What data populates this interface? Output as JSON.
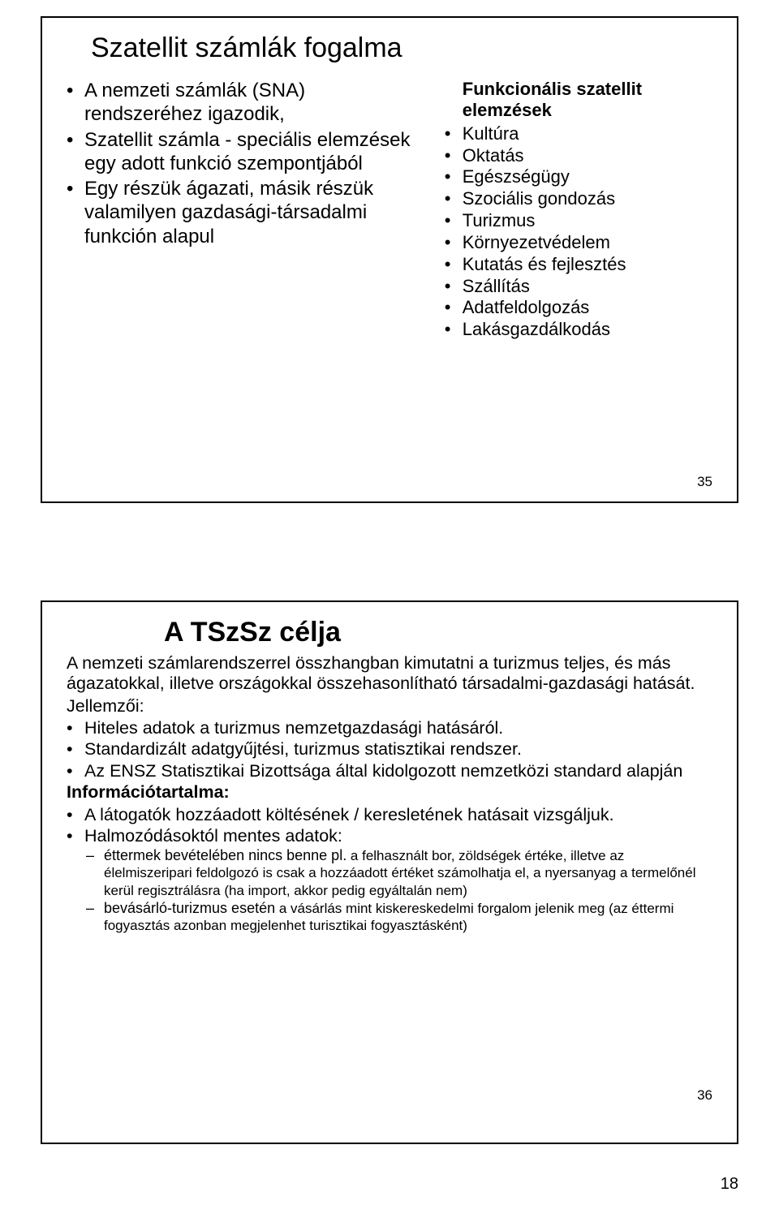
{
  "slide1": {
    "title": "Szatellit számlák fogalma",
    "left_items": [
      "A nemzeti számlák (SNA) rendszeréhez igazodik,",
      "Szatellit számla - speciális elemzések egy adott funkció szempontjából",
      "Egy részük ágazati, másik részük valamilyen gazdasági-társadalmi funkción alapul"
    ],
    "right_heading": "Funkcionális szatellit elemzések",
    "right_items": [
      "Kultúra",
      "Oktatás",
      "Egészségügy",
      "Szociális gondozás",
      "Turizmus",
      "Környezetvédelem",
      "Kutatás és fejlesztés",
      "Szállítás",
      "Adatfeldolgozás",
      "Lakásgazdálkodás"
    ],
    "page_num": "35"
  },
  "slide2": {
    "title": "A TSzSz célja",
    "intro": "A nemzeti számlarendszerrel összhangban kimutatni a turizmus teljes, és más ágazatokkal, illetve országokkal összehasonlítható társadalmi-gazdasági hatását.",
    "jellemzoi_label": "Jellemzői:",
    "jellemzoi_items": [
      "Hiteles adatok a turizmus nemzetgazdasági hatásáról.",
      "Standardizált adatgyűjtési, turizmus statisztikai rendszer.",
      "Az ENSZ Statisztikai Bizottsága által kidolgozott nemzetközi standard alapján"
    ],
    "info_label": "Információtartalma:",
    "info_items": [
      "A látogatók hozzáadott költésének / keresletének hatásait vizsgáljuk.",
      "Halmozódásoktól mentes adatok:"
    ],
    "sub_items": [
      {
        "lead": "éttermek bevételében nincs benne pl.",
        "rest": " a felhasznált bor, zöldségek értéke, illetve az élelmiszeripari feldolgozó is csak a hozzáadott értéket számolhatja el, a nyersanyag a termelőnél kerül regisztrálásra (ha import, akkor pedig egyáltalán nem)"
      },
      {
        "lead": "bevásárló-turizmus esetén",
        "rest": " a vásárlás mint kiskereskedelmi forgalom jelenik meg (az éttermi fogyasztás azonban megjelenhet turisztikai fogyasztásként)"
      }
    ],
    "page_num": "36"
  },
  "footer_page": "18"
}
